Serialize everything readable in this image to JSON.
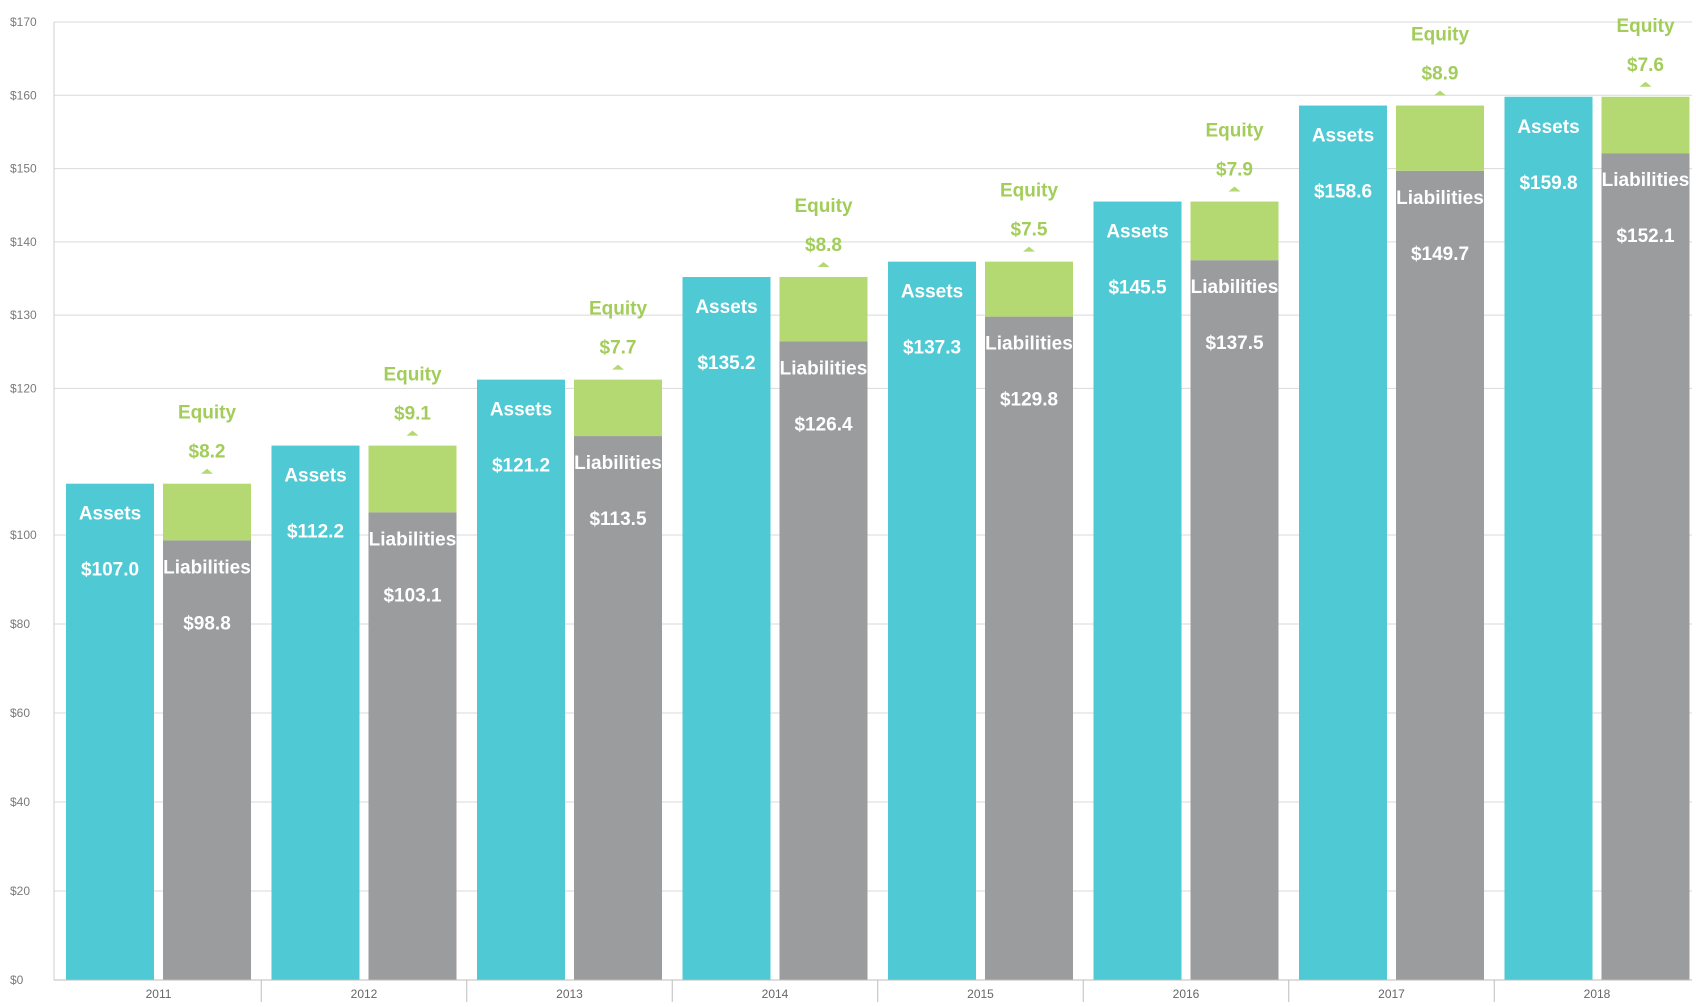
{
  "chart_data": {
    "type": "bar",
    "title": "",
    "xlabel": "",
    "ylabel": "",
    "ylim": [
      0,
      170
    ],
    "y_ticks": [
      "$0",
      "$20",
      "$40",
      "$60",
      "$80",
      "$100",
      "$120",
      "$130",
      "$140",
      "$150",
      "$160",
      "$170"
    ],
    "y_tick_values": [
      0,
      20,
      40,
      60,
      80,
      100,
      120,
      130,
      140,
      150,
      160,
      170
    ],
    "y_scale": "piecewise: 0–100 compressed, 100–170 expanded",
    "grid": true,
    "categories": [
      "2011",
      "2012",
      "2013",
      "2014",
      "2015",
      "2016",
      "2017",
      "2018"
    ],
    "series": [
      {
        "name": "Assets",
        "values": [
          107.0,
          112.2,
          121.2,
          135.2,
          137.3,
          145.5,
          158.6,
          159.8
        ],
        "labels": [
          "$107.0",
          "$112.2",
          "$121.2",
          "$135.2",
          "$137.3",
          "$145.5",
          "$158.6",
          "$159.8"
        ]
      },
      {
        "name": "Liabilities",
        "values": [
          98.8,
          103.1,
          113.5,
          126.4,
          129.8,
          137.5,
          149.7,
          152.1
        ],
        "labels": [
          "$98.8",
          "$103.1",
          "$113.5",
          "$126.4",
          "$129.8",
          "$137.5",
          "$149.7",
          "$152.1"
        ]
      },
      {
        "name": "Equity",
        "values": [
          8.2,
          9.1,
          7.7,
          8.8,
          7.5,
          7.9,
          8.9,
          7.6
        ],
        "labels": [
          "$8.2",
          "$9.1",
          "$7.7",
          "$8.8",
          "$7.5",
          "$7.9",
          "$8.9",
          "$7.6"
        ]
      }
    ],
    "colors": {
      "assets": "#4fc9d3",
      "liabilities": "#9a9c9d",
      "equity": "#b4d872",
      "equity_text": "#a2cd5a",
      "grid": "#d9d9d9"
    }
  }
}
